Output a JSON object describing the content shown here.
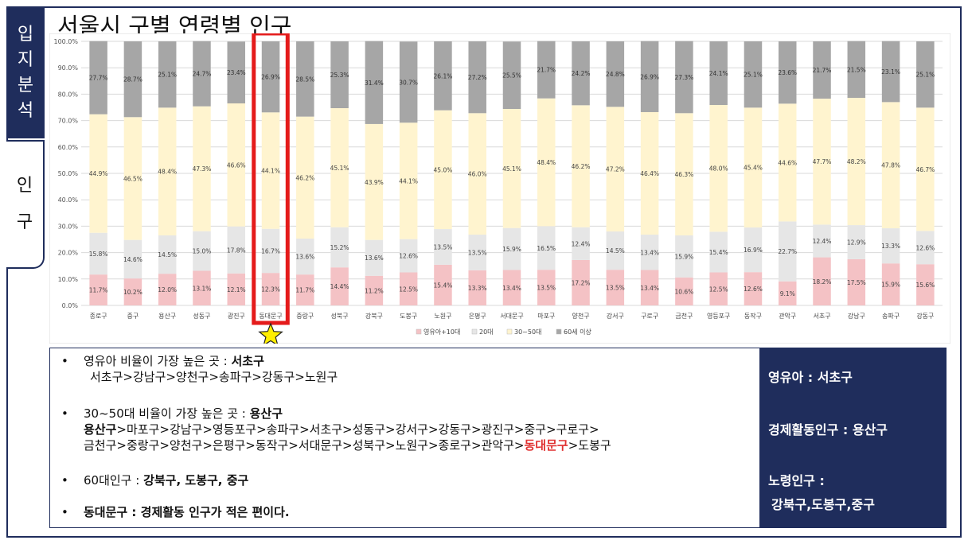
{
  "nav": {
    "tab_active": [
      "입",
      "지",
      "분",
      "석"
    ],
    "tab_inactive": [
      "인",
      "구"
    ]
  },
  "title": "서울시 구별 연령별 인구",
  "chart_data": {
    "type": "bar",
    "stacked": true,
    "percent_stacked": true,
    "categories": [
      "종로구",
      "중구",
      "용산구",
      "성동구",
      "광진구",
      "동대문구",
      "중랑구",
      "성북구",
      "강북구",
      "도봉구",
      "노원구",
      "은평구",
      "서대문구",
      "마포구",
      "양천구",
      "강서구",
      "구로구",
      "금천구",
      "영등포구",
      "동작구",
      "관악구",
      "서초구",
      "강남구",
      "송파구",
      "강동구"
    ],
    "series": [
      {
        "name": "영유아+10대",
        "color": "#f4c2c5",
        "values": [
          11.7,
          10.2,
          12.0,
          13.1,
          12.1,
          12.3,
          11.7,
          14.4,
          11.2,
          12.5,
          15.4,
          13.3,
          13.4,
          13.5,
          17.2,
          13.5,
          13.4,
          10.6,
          12.5,
          12.6,
          9.1,
          18.2,
          17.5,
          15.9,
          15.6
        ]
      },
      {
        "name": "20대",
        "color": "#e6e6e6",
        "values": [
          15.8,
          14.6,
          14.5,
          15.0,
          17.8,
          16.7,
          13.6,
          15.2,
          13.6,
          12.6,
          13.5,
          13.5,
          15.9,
          16.5,
          12.4,
          14.5,
          13.4,
          15.9,
          15.4,
          16.9,
          22.7,
          12.4,
          12.9,
          13.3,
          12.6
        ]
      },
      {
        "name": "30~50대",
        "color": "#fff4cf",
        "values": [
          44.9,
          46.5,
          48.4,
          47.3,
          46.6,
          44.1,
          46.2,
          45.1,
          43.9,
          44.1,
          45.0,
          46.0,
          45.1,
          48.4,
          46.2,
          47.2,
          46.4,
          46.3,
          48.0,
          45.4,
          44.6,
          47.7,
          48.2,
          47.8,
          46.7
        ]
      },
      {
        "name": "60세 이상",
        "color": "#a6a6a6",
        "values": [
          27.7,
          28.7,
          25.1,
          24.7,
          23.4,
          26.9,
          28.5,
          25.3,
          31.4,
          30.7,
          26.1,
          27.2,
          25.5,
          21.7,
          24.2,
          24.8,
          26.9,
          27.3,
          24.1,
          25.1,
          23.6,
          21.7,
          21.5,
          23.1,
          25.1
        ]
      }
    ],
    "yticks": [
      "0.0%",
      "10.0%",
      "20.0%",
      "30.0%",
      "40.0%",
      "50.0%",
      "60.0%",
      "70.0%",
      "80.0%",
      "90.0%",
      "100.0%"
    ],
    "ylim": [
      0,
      100
    ],
    "grid": true,
    "legend_position": "bottom",
    "highlight": {
      "category": "동대문구",
      "marker": "star"
    }
  },
  "bullets": {
    "b1_label": "영유아 비율이 가장 높은 곳 : ",
    "b1_value": "서초구",
    "b1_list": "서초구>강남구>양천구>송파구>강동구>노원구",
    "b2_label": "30~50대 비율이 가장 높은 곳 : ",
    "b2_value": "용산구",
    "b2_list_first": "용산구",
    "b2_list_rest1": ">마포구>강남구>영등포구>송파구>서초구>성동구>강서구>강동구>광진구>중구>구로구>",
    "b2_list_rest2a": "금천구>중랑구>양천구>은평구>동작구>서대문구>성북구>노원구>종로구>관악구>",
    "b2_list_highlight": "동대문구",
    "b2_list_rest2b": ">도봉구",
    "b3_label": "60대인구 : ",
    "b3_value": "강북구, 도봉구, 중구",
    "b4_text": "동대문구 : 경제활동 인구가 적은 편이다.",
    "dot": "•"
  },
  "summary": {
    "infant": "영유아 : 서초구",
    "economic": "경제활동인구 : 용산구",
    "elderly_label": "노령인구 :",
    "elderly_value": "강북구,도봉구,중구"
  }
}
